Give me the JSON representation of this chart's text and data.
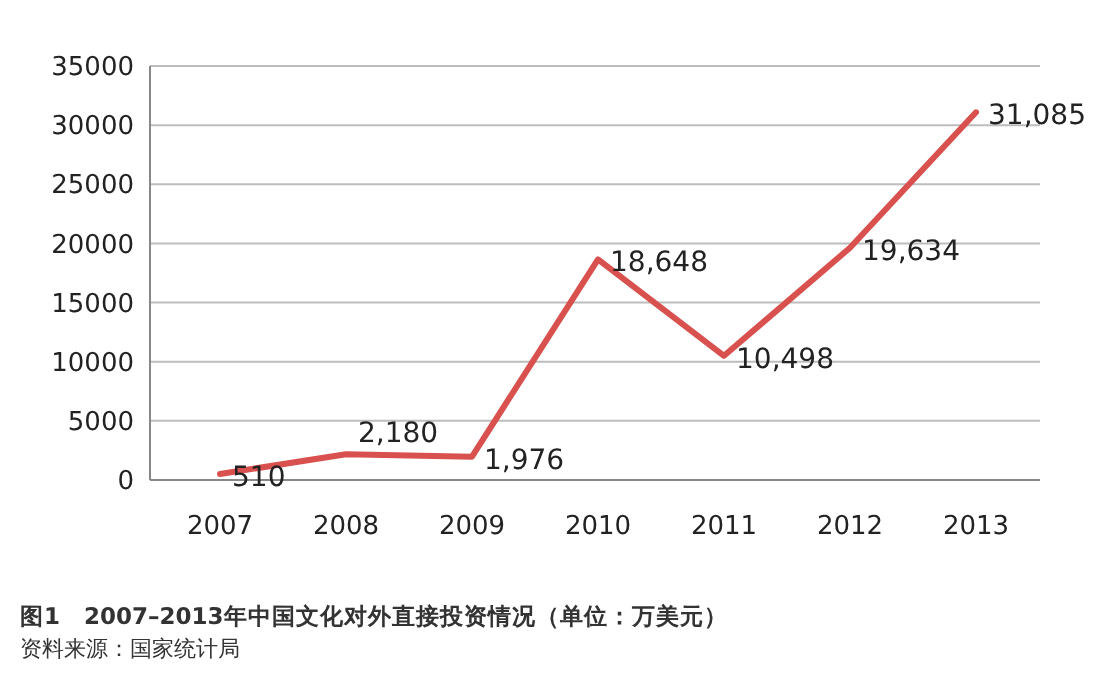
{
  "chart_data": {
    "type": "line",
    "categories": [
      "2007",
      "2008",
      "2009",
      "2010",
      "2011",
      "2012",
      "2013"
    ],
    "series": [
      {
        "color": "#d9514e",
        "values": [
          510,
          2180,
          1976,
          18648,
          10498,
          19634,
          31085
        ],
        "value_labels": [
          "510",
          "2,180",
          "1,976",
          "18,648",
          "10,498",
          "19,634",
          "31,085"
        ]
      }
    ],
    "ylim": [
      0,
      35000
    ],
    "yticks": [
      0,
      5000,
      10000,
      15000,
      20000,
      25000,
      30000,
      35000
    ],
    "grid": "y",
    "marker": "none",
    "line_style": "solid",
    "annotations": [
      "图1　2007–2013年中国文化对外直接投资情况（单位：万美元）",
      "资料来源：国家统计局"
    ]
  }
}
